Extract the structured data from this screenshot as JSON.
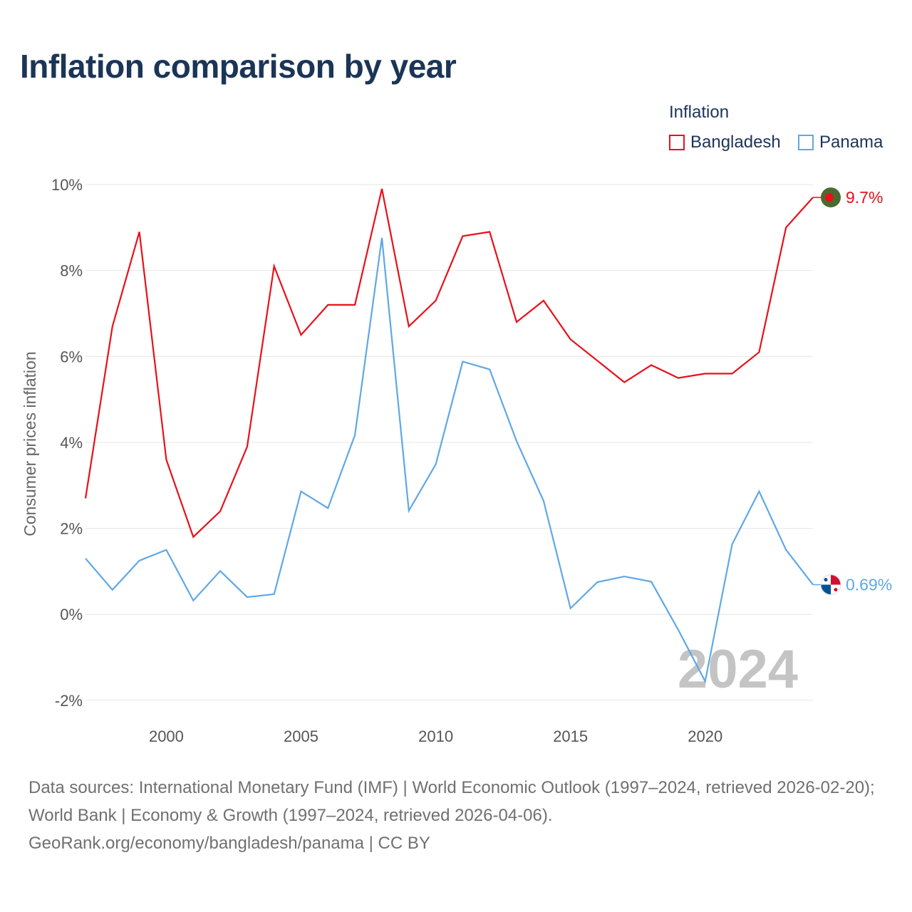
{
  "page": {
    "title": "Inflation comparison by year"
  },
  "legend": {
    "title": "Inflation"
  },
  "chart_data": {
    "type": "line",
    "title": "Inflation comparison by year",
    "ylabel": "Consumer prices inflation",
    "xlabel": "",
    "xlim": [
      1997,
      2024
    ],
    "ylim": [
      -2.4,
      10
    ],
    "xticks": [
      2000,
      2005,
      2010,
      2015,
      2020
    ],
    "yticks": [
      -2,
      0,
      2,
      4,
      6,
      8,
      10
    ],
    "ytick_labels": [
      "-2%",
      "0%",
      "2%",
      "4%",
      "6%",
      "8%",
      "10%"
    ],
    "grid": true,
    "legend_position": "top-right",
    "year_label": "2024",
    "x": [
      1997,
      1998,
      1999,
      2000,
      2001,
      2002,
      2003,
      2004,
      2005,
      2006,
      2007,
      2008,
      2009,
      2010,
      2011,
      2012,
      2013,
      2014,
      2015,
      2016,
      2017,
      2018,
      2019,
      2020,
      2021,
      2022,
      2023,
      2024
    ],
    "series": [
      {
        "name": "Bangladesh",
        "color": "#e8101a",
        "end_label": "9.7%",
        "values": [
          2.7,
          6.7,
          8.9,
          3.6,
          1.8,
          2.4,
          3.9,
          8.1,
          6.5,
          7.2,
          7.2,
          9.9,
          6.7,
          7.3,
          8.8,
          8.9,
          6.8,
          7.3,
          6.4,
          5.9,
          5.4,
          5.8,
          5.5,
          5.6,
          5.6,
          6.1,
          9.0,
          9.7
        ]
      },
      {
        "name": "Panama",
        "color": "#5fa8e6",
        "end_label": "0.69%",
        "values": [
          1.3,
          0.57,
          1.25,
          1.5,
          0.32,
          1.01,
          0.4,
          0.47,
          2.86,
          2.47,
          4.17,
          8.76,
          2.41,
          3.49,
          5.88,
          5.7,
          4.03,
          2.64,
          0.14,
          0.75,
          0.88,
          0.76,
          -0.36,
          -1.56,
          1.63,
          2.86,
          1.5,
          0.69
        ]
      }
    ]
  },
  "source": {
    "line1": "Data sources: International Monetary Fund (IMF) | World Economic Outlook (1997–2024, retrieved 2026-02-20); World Bank | Economy & Growth (1997–2024, retrieved 2026-04-06).",
    "line2": "GeoRank.org/economy/bangladesh/panama | CC BY"
  }
}
